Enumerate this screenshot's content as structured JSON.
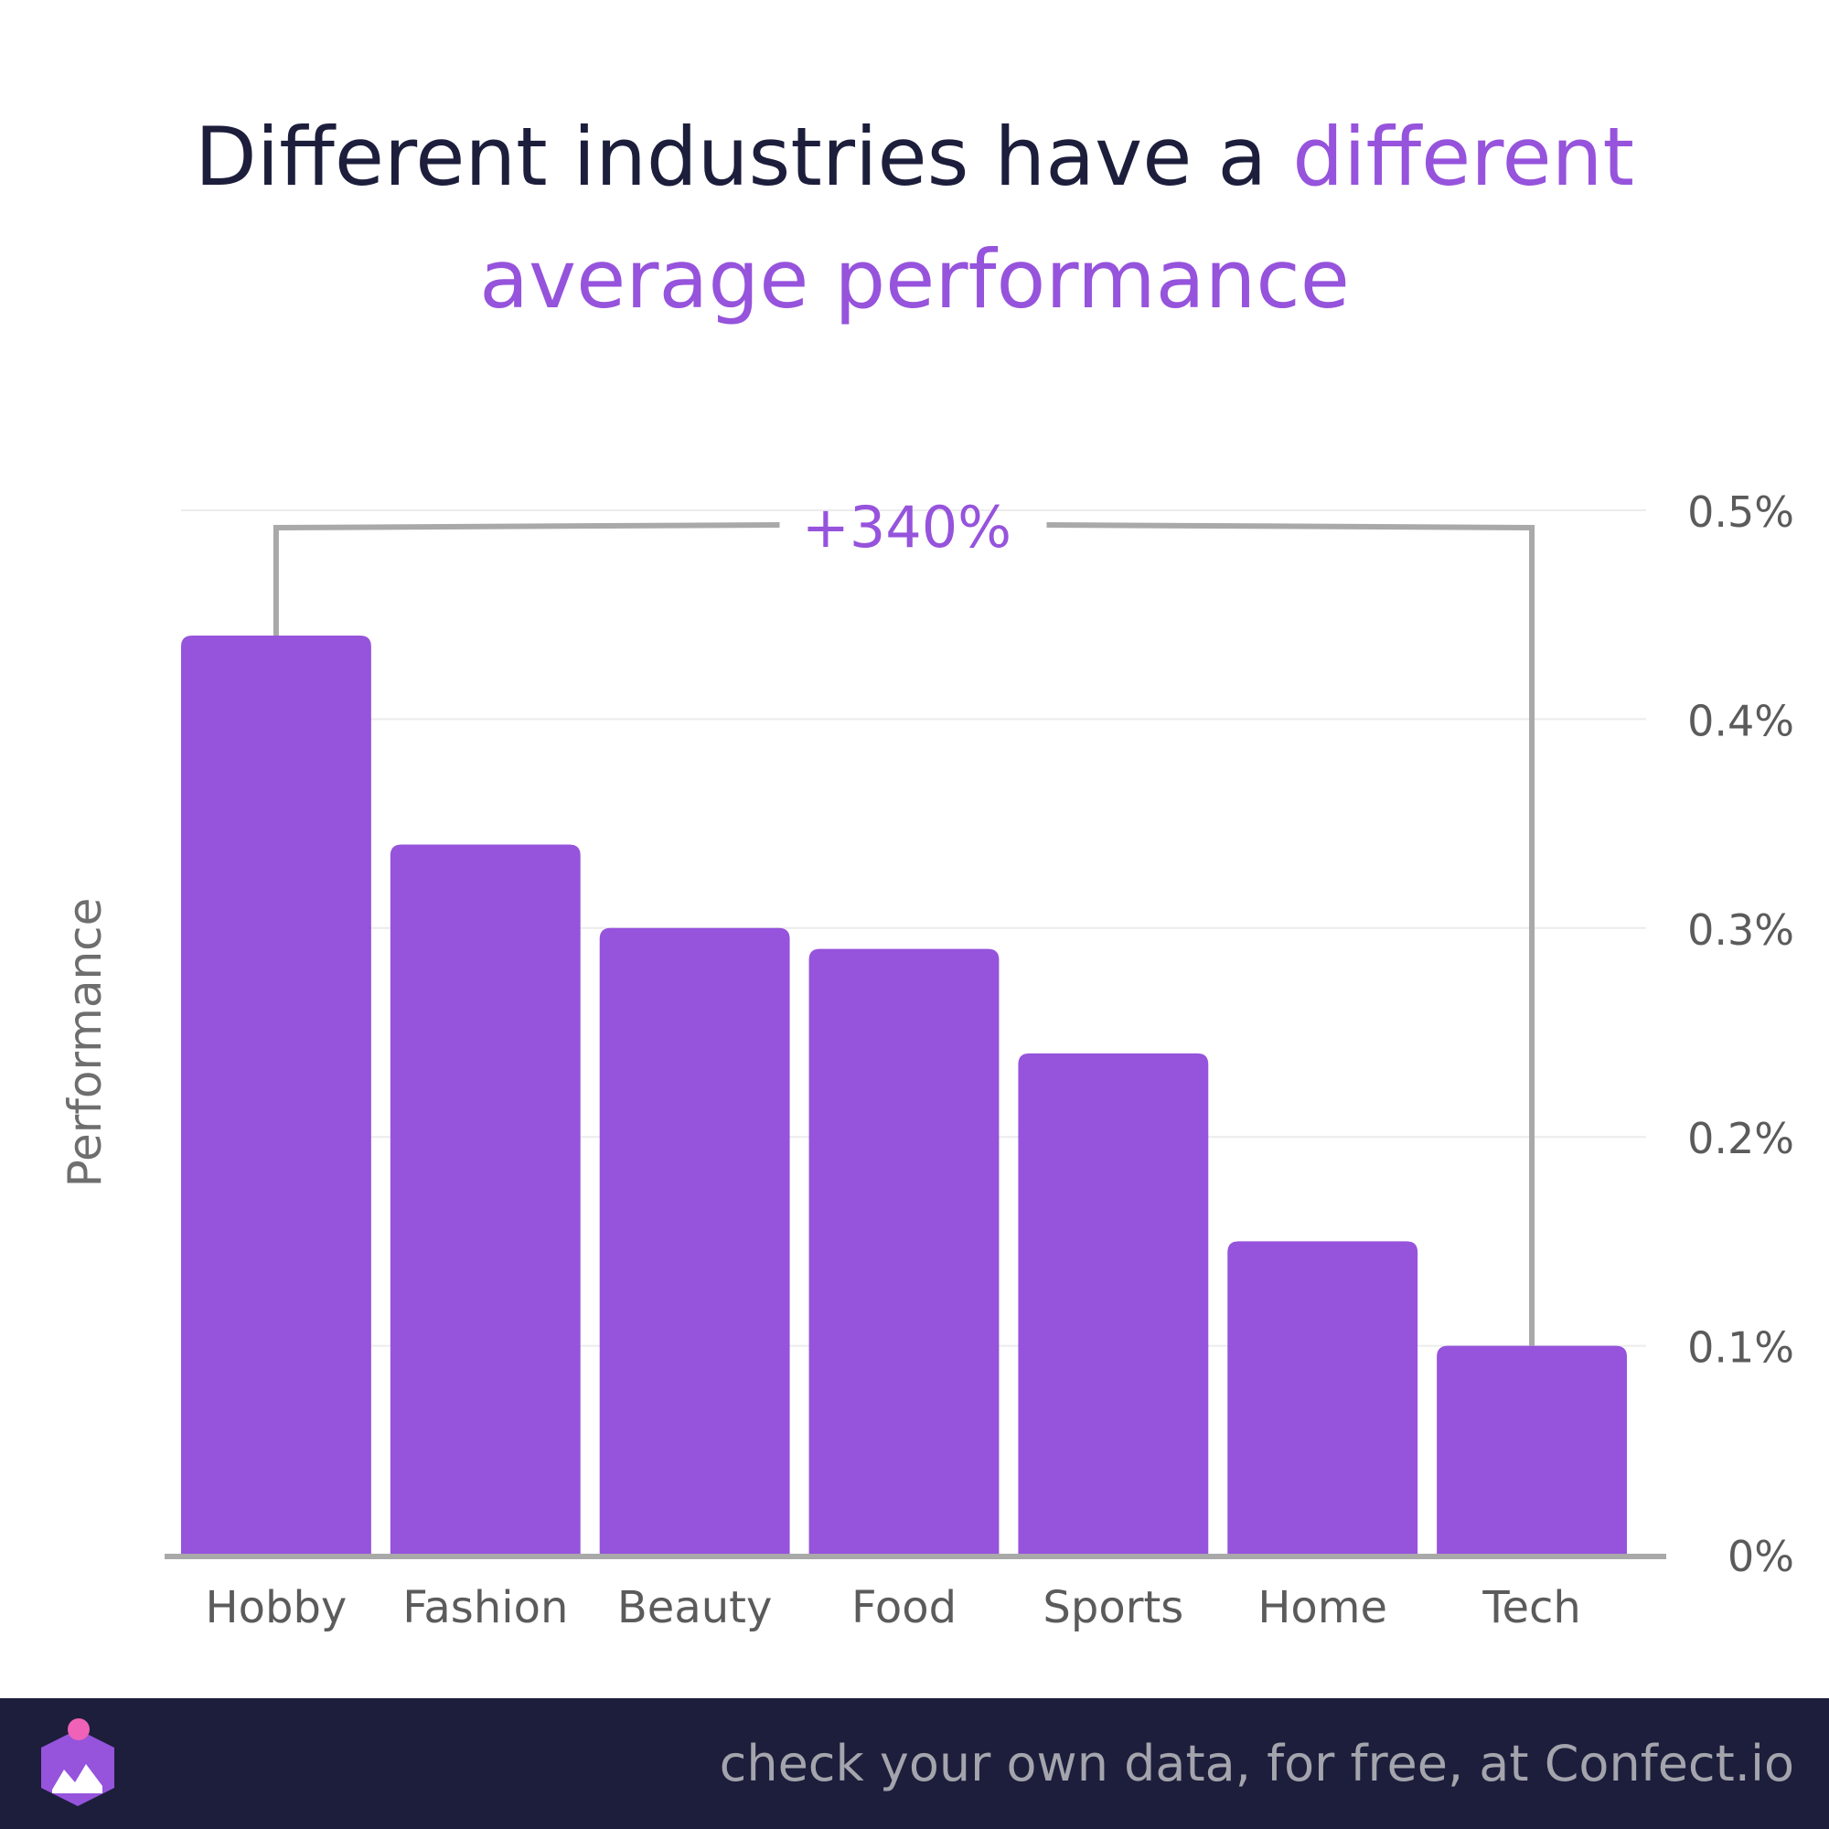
{
  "title": {
    "part1": "Different industries have a ",
    "accent1": "different",
    "accent2": "average performance"
  },
  "chart_data": {
    "type": "bar",
    "categories": [
      "Hobby",
      "Fashion",
      "Beauty",
      "Food",
      "Sports",
      "Home",
      "Tech"
    ],
    "values": [
      0.44,
      0.34,
      0.3,
      0.29,
      0.24,
      0.15,
      0.1
    ],
    "ylabel": "Performance",
    "yticks": [
      "0%",
      "0.1%",
      "0.2%",
      "0.3%",
      "0.4%",
      "0.5%"
    ],
    "ylim": [
      0,
      0.5
    ],
    "y_axis_position": "right",
    "grid": true,
    "bar_color": "#9653dc",
    "annotation": "+340%"
  },
  "footer": {
    "text": "check your own data, for free, at Confect.io"
  },
  "colors": {
    "accent": "#9653dc",
    "dark": "#1c1e3b",
    "axis": "#a9a9a9",
    "grid": "#ececec",
    "label": "#5b5b5b"
  }
}
